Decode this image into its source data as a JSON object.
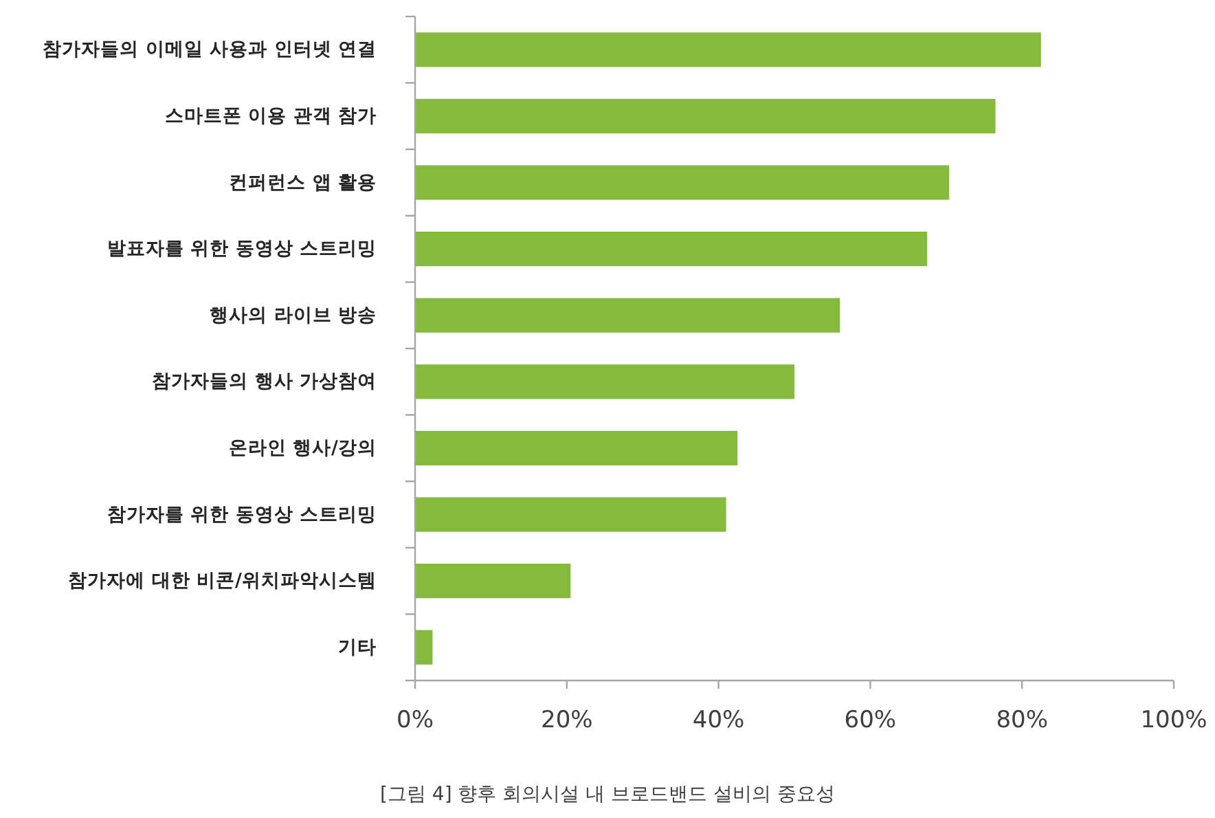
{
  "chart_data": {
    "type": "bar",
    "orientation": "horizontal",
    "categories": [
      "참가자들의 이메일 사용과 인터넷 연결",
      "스마트폰 이용 관객 참가",
      "컨퍼런스 앱 활용",
      "발표자를 위한 동영상 스트리밍",
      "행사의 라이브 방송",
      "참가자들의 행사 가상참여",
      "온라인 행사/강의",
      "참가자를 위한 동영상 스트리밍",
      "참가자에 대한 비콘/위치파악시스템",
      "기타"
    ],
    "values": [
      82.5,
      76.5,
      70.4,
      67.5,
      56.0,
      50.0,
      42.5,
      41,
      20.5,
      2.3
    ],
    "color": "#84bb3f",
    "xlim": [
      0,
      100
    ],
    "xticks": [
      {
        "value": 0,
        "label": "0%"
      },
      {
        "value": 20,
        "label": "20%"
      },
      {
        "value": 40,
        "label": "40%"
      },
      {
        "value": 60,
        "label": "60%"
      },
      {
        "value": 80,
        "label": "80%"
      },
      {
        "value": 100,
        "label": "100%"
      }
    ],
    "grid": false,
    "annotations": [
      "[그림 4] 향후 회의시설 내 브로드밴드 설비의 중요성"
    ]
  }
}
